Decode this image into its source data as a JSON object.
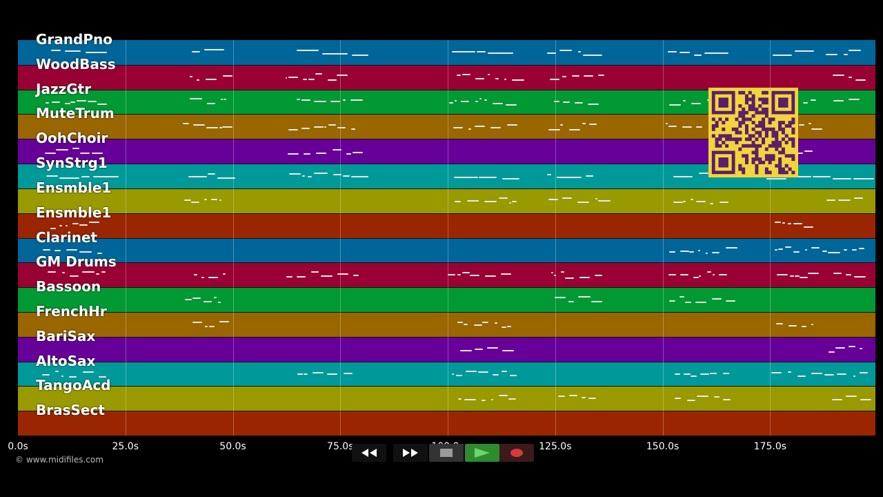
{
  "tracks": [
    {
      "name": "GrandPno",
      "color": "#006699"
    },
    {
      "name": "WoodBass",
      "color": "#990033"
    },
    {
      "name": "JazzGtr",
      "color": "#009933"
    },
    {
      "name": "MuteTrum",
      "color": "#996600"
    },
    {
      "name": "OohChoir",
      "color": "#660099"
    },
    {
      "name": "SynStrg1",
      "color": "#009999"
    },
    {
      "name": "Ensmble1",
      "color": "#999900"
    },
    {
      "name": "Ensmble1",
      "color": "#992600"
    },
    {
      "name": "Clarinet",
      "color": "#006699"
    },
    {
      "name": "GM Drums",
      "color": "#990033"
    },
    {
      "name": "Bassoon",
      "color": "#009933"
    },
    {
      "name": "FrenchHr",
      "color": "#996600"
    },
    {
      "name": "BariSax",
      "color": "#660099"
    },
    {
      "name": "AltoSax",
      "color": "#009999"
    },
    {
      "name": "TangoAcd",
      "color": "#999900"
    },
    {
      "name": "BrasSect",
      "color": "#992600"
    }
  ],
  "timeline": {
    "ticks": [
      {
        "label": "0.0s",
        "seconds": 0
      },
      {
        "label": "25.0s",
        "seconds": 25
      },
      {
        "label": "50.0s",
        "seconds": 50
      },
      {
        "label": "75.0s",
        "seconds": 75
      },
      {
        "label": "100.0s",
        "seconds": 100
      },
      {
        "label": "125.0s",
        "seconds": 125
      },
      {
        "label": "150.0s",
        "seconds": 150
      },
      {
        "label": "175.0s",
        "seconds": 175
      }
    ],
    "range_seconds": [
      0,
      199.5
    ]
  },
  "copyright": "© www.midifiles.com",
  "controls": {
    "rewind_icon": "rewind-icon",
    "forward_icon": "fast-forward-icon",
    "stop_icon": "stop-icon",
    "play_icon": "play-icon",
    "record_icon": "record-icon",
    "play_color": "#2e8b2e",
    "record_color": "#d63a3a"
  }
}
